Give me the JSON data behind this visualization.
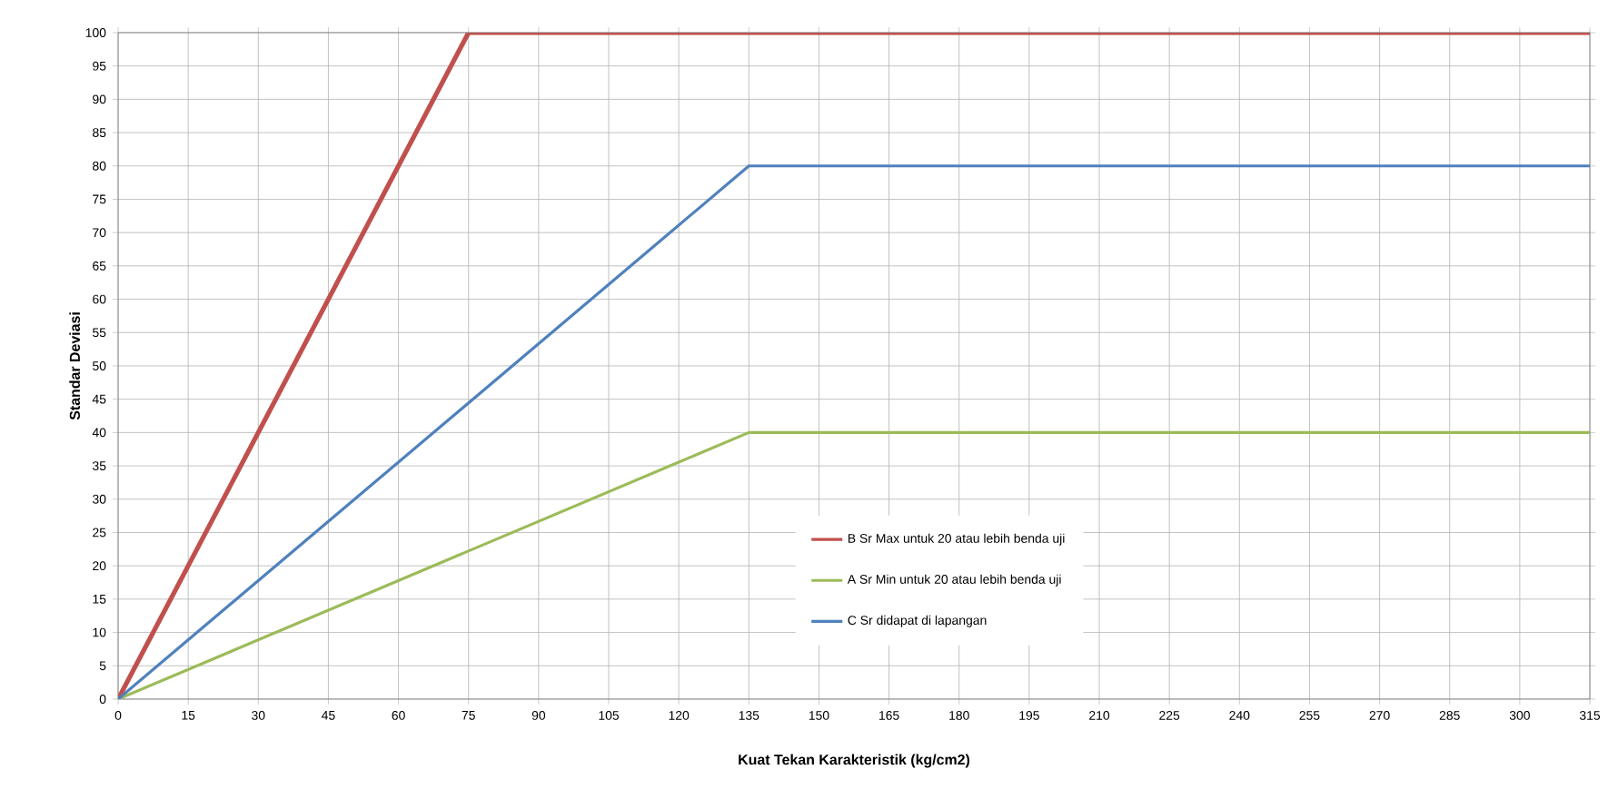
{
  "chart_data": {
    "type": "line",
    "xlabel": "Kuat Tekan Karakteristik (kg/cm2)",
    "ylabel": "Standar Deviasi",
    "series": [
      {
        "name": "B Sr Max untuk 20 atau lebih benda uji",
        "color": "#c0504d",
        "x": [
          0,
          75,
          315
        ],
        "values": [
          0,
          100,
          100
        ]
      },
      {
        "name": "A Sr Min untuk 20 atau lebih benda uji",
        "color": "#9bbb59",
        "x": [
          0,
          135,
          315
        ],
        "values": [
          0,
          40,
          40
        ]
      },
      {
        "name": "C Sr didapat di lapangan",
        "color": "#4f81bd",
        "x": [
          0,
          135,
          315
        ],
        "values": [
          0,
          80,
          80
        ]
      }
    ],
    "xlim": [
      0,
      315
    ],
    "xticks": [
      0,
      15,
      30,
      45,
      60,
      75,
      90,
      105,
      120,
      135,
      150,
      165,
      180,
      195,
      210,
      225,
      240,
      255,
      270,
      285,
      300,
      315
    ],
    "ylim": [
      0,
      100
    ],
    "yticks": [
      0,
      5,
      10,
      15,
      20,
      25,
      30,
      35,
      40,
      45,
      50,
      55,
      60,
      65,
      70,
      75,
      80,
      85,
      90,
      95,
      100
    ],
    "grid": true,
    "legend": "bottom",
    "marker": "none",
    "line_style": "solid"
  }
}
